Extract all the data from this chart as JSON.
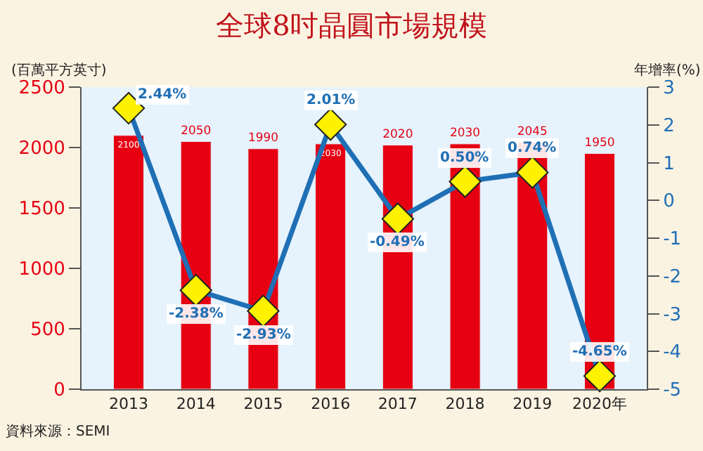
{
  "chart_data": {
    "type": "bar",
    "title": "全球8吋晶圓市場規模",
    "ylabel": "(百萬平方英寸)",
    "y2label": "年增率(%)",
    "categories": [
      "2013",
      "2014",
      "2015",
      "2016",
      "2017",
      "2018",
      "2019",
      "2020年"
    ],
    "series": [
      {
        "color": "#e60012",
        "values": [
          2100,
          2050,
          1990,
          2030,
          2020,
          2030,
          2045,
          1950
        ],
        "data_labels": true
      },
      {
        "type": "line",
        "axis": "y2",
        "color": "#1f6fb5",
        "marker": "diamond",
        "values": [
          2.44,
          -2.38,
          -2.93,
          2.01,
          -0.49,
          0.5,
          0.74,
          -4.65
        ],
        "value_labels": [
          "2.44%",
          "-2.38%",
          "-2.93%",
          "2.01%",
          "-0.49%",
          "0.50%",
          "0.74%",
          "-4.65%"
        ]
      }
    ],
    "ylim": [
      0,
      2500
    ],
    "yticks": [
      0,
      500,
      1000,
      1500,
      2000,
      2500
    ],
    "y2lim": [
      -5,
      3
    ],
    "y2ticks": [
      -5,
      -4,
      -3,
      -2,
      -1,
      0,
      1,
      2,
      3
    ],
    "grid": false,
    "annotations": [
      "資料來源：SEMI"
    ]
  }
}
